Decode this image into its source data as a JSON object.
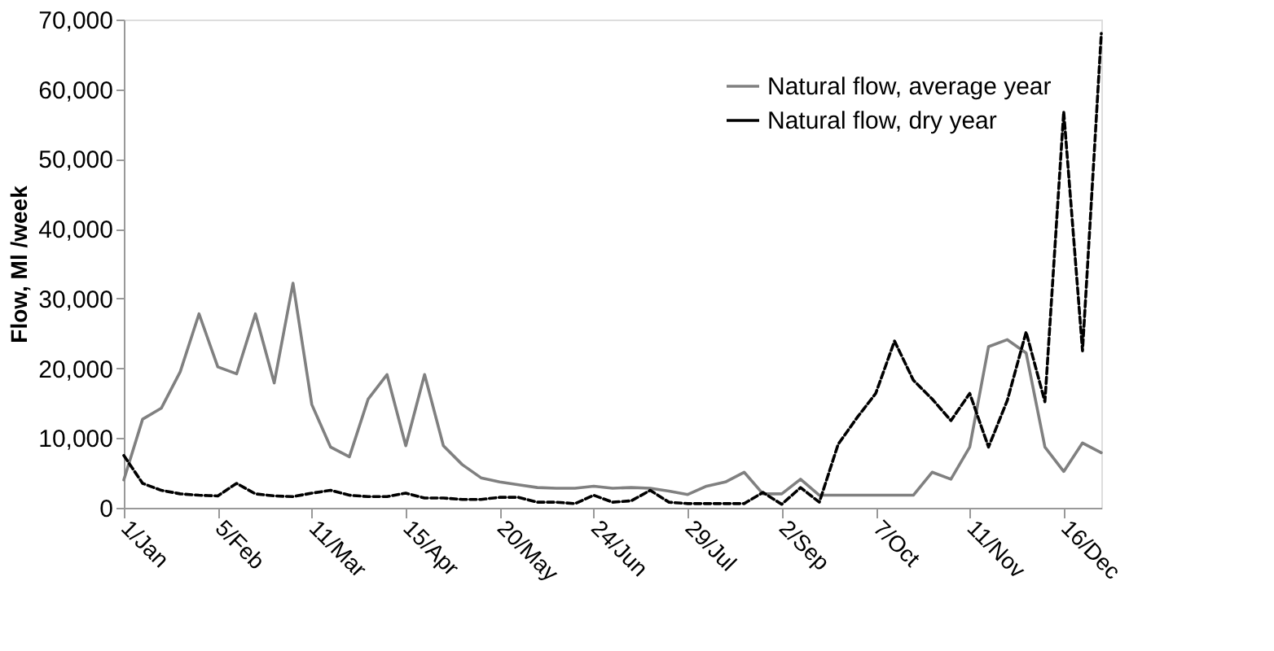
{
  "chart_data": {
    "type": "line",
    "ylabel": "Flow, Ml /week",
    "categories": [
      "1/Jan",
      null,
      null,
      null,
      null,
      "5/Feb",
      null,
      null,
      null,
      null,
      "11/Mar",
      null,
      null,
      null,
      null,
      "15/Apr",
      null,
      null,
      null,
      null,
      "20/May",
      null,
      null,
      null,
      null,
      "24/Jun",
      null,
      null,
      null,
      null,
      "29/Jul",
      null,
      null,
      null,
      null,
      "2/Sep",
      null,
      null,
      null,
      null,
      "7/Oct",
      null,
      null,
      null,
      null,
      "11/Nov",
      null,
      null,
      null,
      null,
      "16/Dec",
      null,
      null
    ],
    "series": [
      {
        "name": "Natural flow, average year",
        "color": "#808080",
        "line_style": "solid",
        "values": [
          4000,
          12700,
          14300,
          19500,
          27800,
          20200,
          19200,
          27800,
          17900,
          32200,
          14800,
          8700,
          7300,
          15600,
          19100,
          8900,
          19100,
          8900,
          6200,
          4300,
          3700,
          3300,
          2900,
          2800,
          2800,
          3100,
          2800,
          2900,
          2800,
          2400,
          1900,
          3100,
          3700,
          5100,
          2000,
          2000,
          4100,
          1800,
          1800,
          1800,
          1800,
          1800,
          1800,
          5100,
          4100,
          8700,
          23100,
          24100,
          22200,
          8700,
          5200,
          9300,
          7900
        ]
      },
      {
        "name": "Natural flow, dry year",
        "color": "#000000",
        "line_style": "dashed",
        "values": [
          7500,
          3500,
          2500,
          2000,
          1800,
          1700,
          3500,
          2000,
          1700,
          1600,
          2100,
          2500,
          1800,
          1600,
          1600,
          2100,
          1400,
          1400,
          1200,
          1200,
          1500,
          1500,
          800,
          800,
          600,
          1800,
          800,
          1000,
          2500,
          800,
          600,
          600,
          600,
          600,
          2200,
          500,
          2900,
          800,
          9100,
          12900,
          16400,
          23900,
          18300,
          15600,
          12500,
          16400,
          8700,
          15400,
          25200,
          15200,
          56800,
          22500,
          68000
        ]
      }
    ],
    "ylim": [
      0,
      70000
    ],
    "yticks": [
      {
        "value": 0,
        "label": "0"
      },
      {
        "value": 10000,
        "label": "10,000"
      },
      {
        "value": 20000,
        "label": "20,000"
      },
      {
        "value": 30000,
        "label": "30,000"
      },
      {
        "value": 40000,
        "label": "40,000"
      },
      {
        "value": 50000,
        "label": "50,000"
      },
      {
        "value": 60000,
        "label": "60,000"
      },
      {
        "value": 70000,
        "label": "70,000"
      }
    ],
    "grid": false,
    "legend": "top right",
    "marker": "none"
  }
}
